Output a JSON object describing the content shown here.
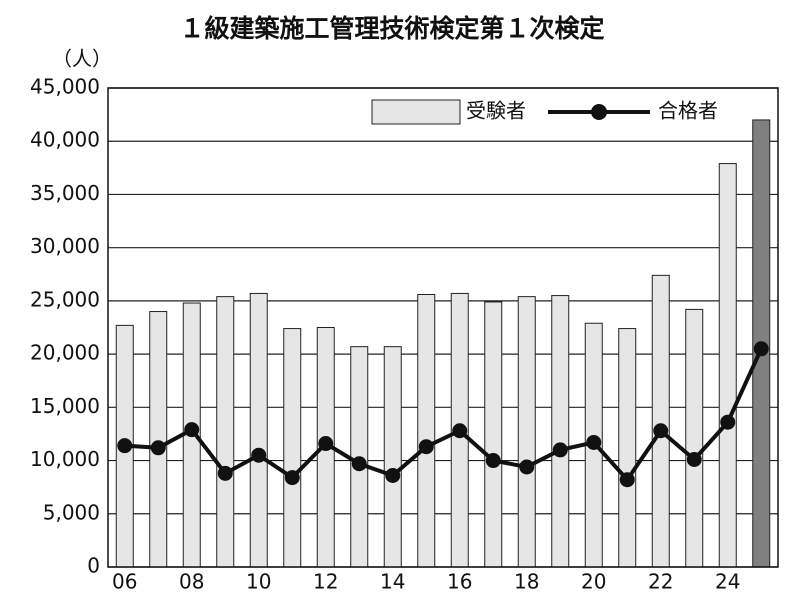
{
  "chart_data": {
    "type": "bar",
    "title": "１級建築施工管理技術検定第１次検定",
    "y_label": "（人）",
    "categories": [
      "06",
      null,
      "08",
      null,
      "10",
      null,
      "12",
      null,
      "14",
      null,
      "16",
      null,
      "18",
      null,
      "20",
      null,
      "22",
      null,
      "24",
      null
    ],
    "series": [
      {
        "name": "受験者",
        "type": "bar",
        "color": "#e6e6e6",
        "colors": [
          "#e6e6e6",
          "#e6e6e6",
          "#e6e6e6",
          "#e6e6e6",
          "#e6e6e6",
          "#e6e6e6",
          "#e6e6e6",
          "#e6e6e6",
          "#e6e6e6",
          "#e6e6e6",
          "#e6e6e6",
          "#e6e6e6",
          "#e6e6e6",
          "#e6e6e6",
          "#e6e6e6",
          "#e6e6e6",
          "#e6e6e6",
          "#e6e6e6",
          "#e6e6e6",
          "#808080"
        ],
        "values": [
          22700,
          24000,
          24800,
          25400,
          25700,
          22400,
          22500,
          20700,
          20700,
          25600,
          25700,
          24900,
          25400,
          25500,
          22900,
          22400,
          27400,
          24200,
          37900,
          42000
        ]
      },
      {
        "name": "合格者",
        "type": "line",
        "color": "#111111",
        "values": [
          11400,
          11200,
          12900,
          8800,
          10500,
          8400,
          11600,
          9700,
          8600,
          11300,
          12800,
          10000,
          9400,
          11000,
          11700,
          8200,
          12800,
          10100,
          13600,
          20500
        ]
      }
    ],
    "ylim": [
      0,
      45000
    ],
    "yticks": [
      0,
      {
        "value": 5000,
        "label": "5,000"
      },
      {
        "value": 10000,
        "label": "10,000"
      },
      {
        "value": 15000,
        "label": "15,000"
      },
      {
        "value": 20000,
        "label": "20,000"
      },
      {
        "value": 25000,
        "label": "25,000"
      },
      {
        "value": 30000,
        "label": "30,000"
      },
      {
        "value": 35000,
        "label": "35,000"
      },
      {
        "value": 40000,
        "label": "40,000"
      },
      {
        "value": 45000,
        "label": "45,000"
      }
    ],
    "grid": true,
    "legend": "upper right"
  }
}
